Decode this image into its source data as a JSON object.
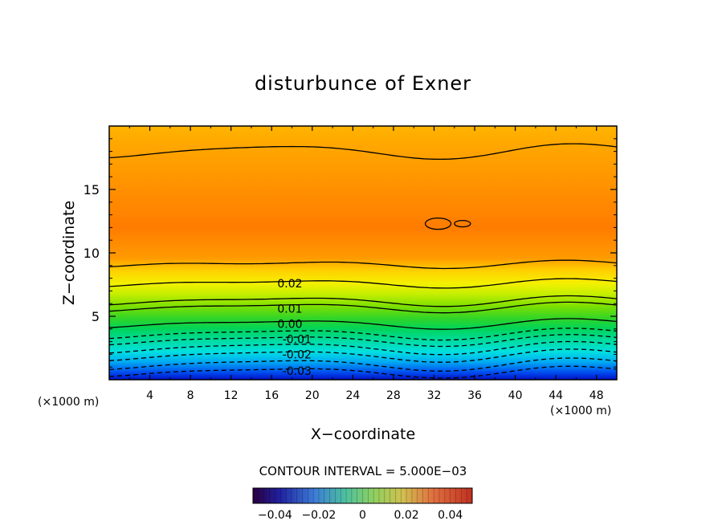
{
  "chart_data": {
    "type": "contour",
    "title": "disturbunce of Exner",
    "xlabel": "X−coordinate",
    "ylabel": "Z−coordinate",
    "x_unit_left": "(×1000 m)",
    "x_unit_right": "(×1000 m)",
    "xlim": [
      0,
      50
    ],
    "ylim": [
      0,
      20
    ],
    "x_ticks": [
      "4",
      "8",
      "12",
      "16",
      "20",
      "24",
      "28",
      "32",
      "36",
      "40",
      "44",
      "48"
    ],
    "y_ticks": [
      "5",
      "10",
      "15"
    ],
    "contour_labels": [
      {
        "text": "0.02",
        "x": 17.8,
        "z": 7.6
      },
      {
        "text": "0.01",
        "x": 17.8,
        "z": 5.6
      },
      {
        "text": "0.00",
        "x": 17.8,
        "z": 4.4
      },
      {
        "text": "-0.01",
        "x": 18.5,
        "z": 3.2
      },
      {
        "text": "-0.02",
        "x": 18.5,
        "z": 2.0
      },
      {
        "text": "-0.03",
        "x": 18.5,
        "z": 0.7
      }
    ],
    "contour_interval_label": "CONTOUR INTERVAL = 5.000E−03",
    "colorbar_ticks": [
      "−0.04",
      "−0.02",
      "0",
      "0.02",
      "0.04"
    ],
    "colorbar_range": [
      -0.05,
      0.05
    ],
    "max_region": {
      "x_range": [
        30,
        36
      ],
      "z": 12.3
    }
  }
}
